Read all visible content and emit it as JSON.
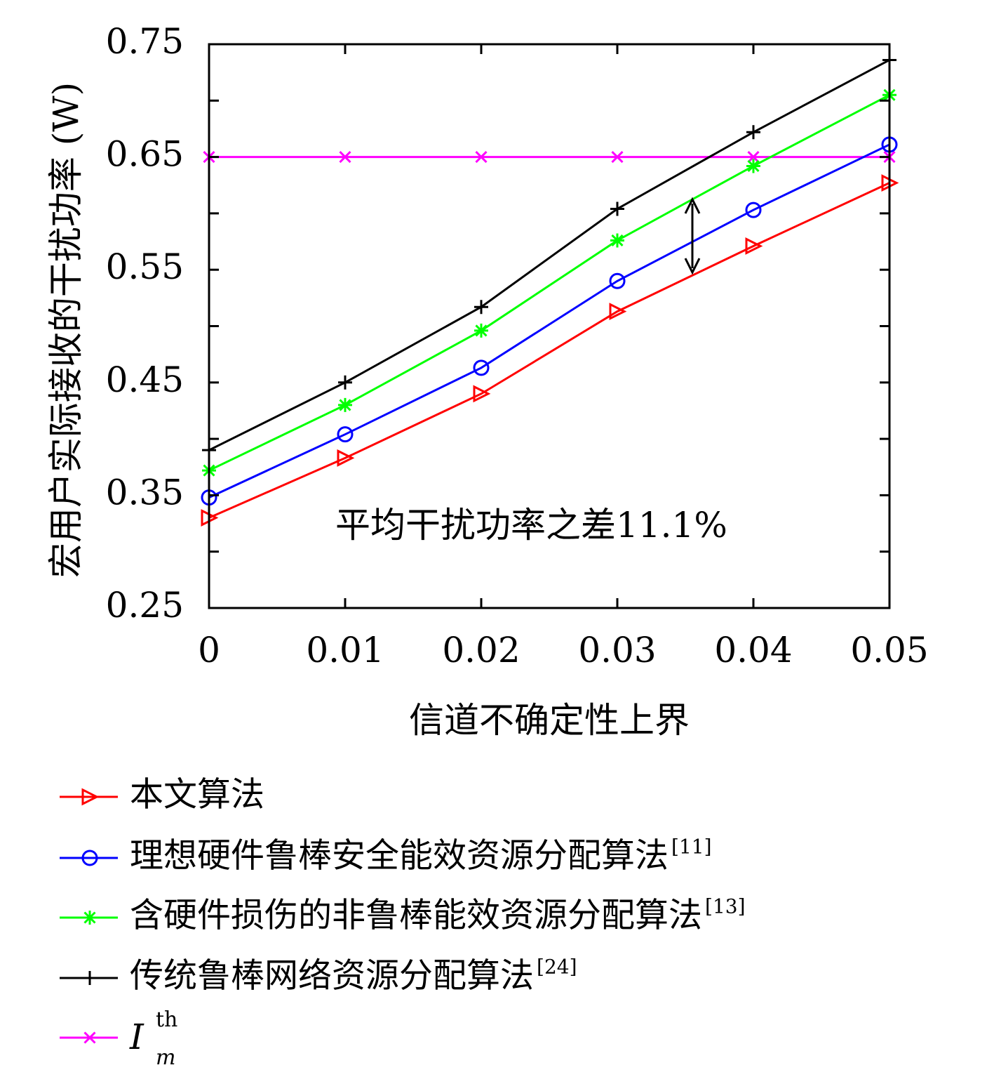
{
  "chart_data": {
    "type": "line",
    "xlabel": "信道不确定性上界",
    "ylabel": "宏用户实际接收的干扰功率 (W)",
    "x": [
      0,
      0.01,
      0.02,
      0.03,
      0.04,
      0.05
    ],
    "x_tick_labels": [
      "0",
      "0.01",
      "0.02",
      "0.03",
      "0.04",
      "0.05"
    ],
    "y_tick_labels": [
      "0.25",
      "0.35",
      "0.45",
      "0.55",
      "0.65",
      "0.75"
    ],
    "xlim": [
      0,
      0.05
    ],
    "ylim": [
      0.25,
      0.75
    ],
    "grid": false,
    "legend_position": "below",
    "annotation": "平均干扰功率之差11.1%",
    "series": [
      {
        "name": "本文算法",
        "ref": "",
        "color": "#ff0000",
        "marker": "triangle-right",
        "values": [
          0.33,
          0.383,
          0.44,
          0.513,
          0.571,
          0.627
        ]
      },
      {
        "name": "理想硬件鲁棒安全能效资源分配算法",
        "ref": "[11]",
        "color": "#0000ff",
        "marker": "circle",
        "values": [
          0.348,
          0.404,
          0.463,
          0.54,
          0.603,
          0.661
        ]
      },
      {
        "name": "含硬件损伤的非鲁棒能效资源分配算法",
        "ref": "[13]",
        "color": "#00ff00",
        "marker": "asterisk",
        "values": [
          0.372,
          0.43,
          0.496,
          0.576,
          0.642,
          0.705
        ]
      },
      {
        "name": "传统鲁棒网络资源分配算法",
        "ref": "[24]",
        "color": "#000000",
        "marker": "plus",
        "values": [
          0.39,
          0.45,
          0.517,
          0.604,
          0.672,
          0.736
        ]
      },
      {
        "name": "I",
        "name_sup": "th",
        "name_sub": "m",
        "color": "#ff00ff",
        "marker": "x",
        "values": [
          0.65,
          0.65,
          0.65,
          0.65,
          0.65,
          0.65
        ]
      }
    ]
  }
}
